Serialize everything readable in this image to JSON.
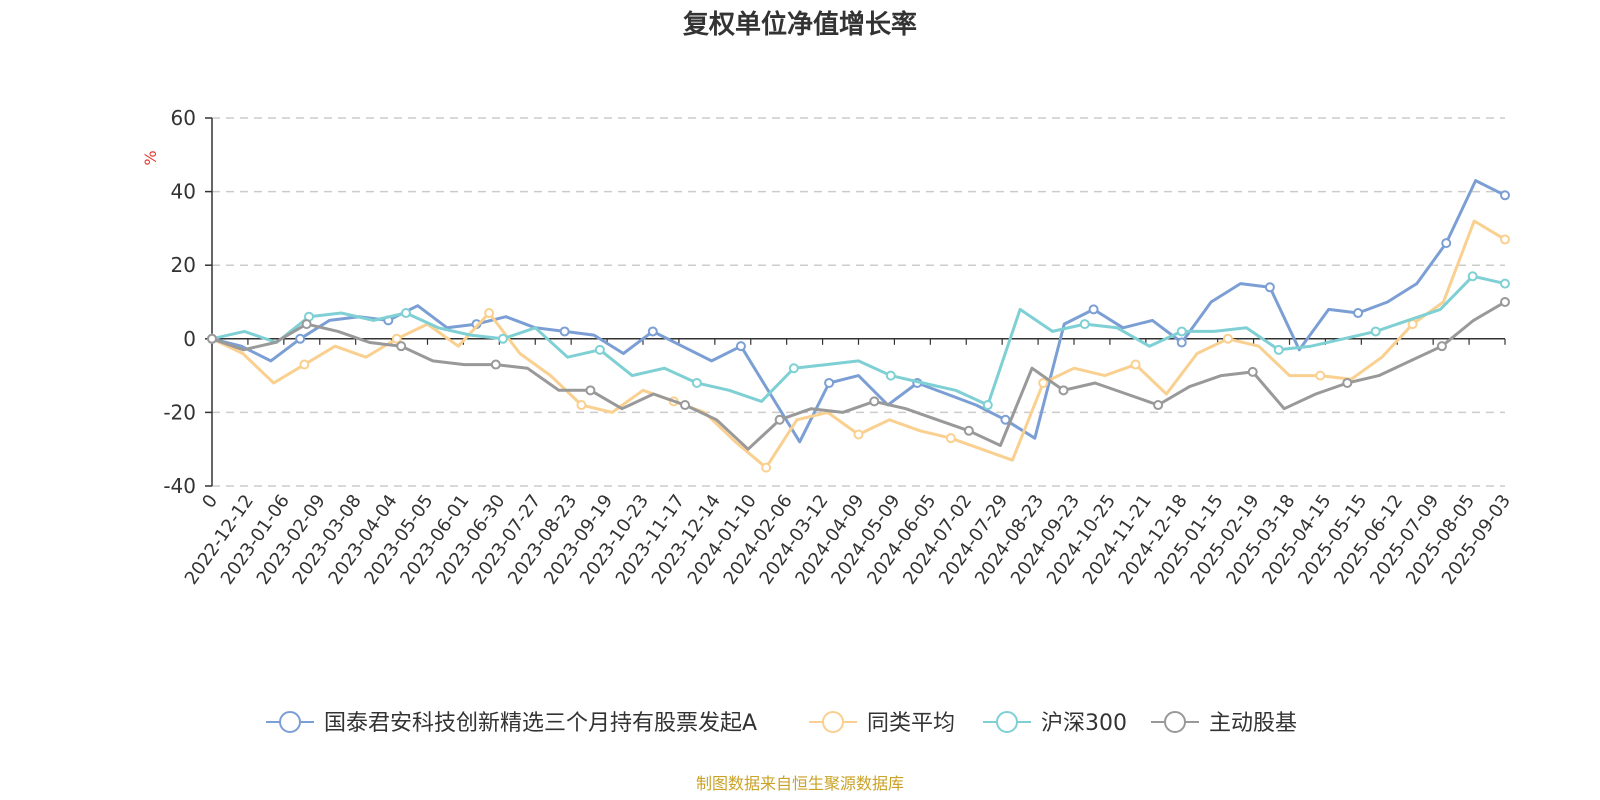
{
  "chart_data": {
    "type": "line",
    "title": "复权单位净值增长率",
    "ylabel": "%",
    "ylim": [
      -40,
      60
    ],
    "yticks": [
      "-40",
      "-20",
      "0",
      "20",
      "40",
      "60"
    ],
    "grid": true,
    "legend_position": "bottom",
    "x_tick_labels": [
      "0",
      "2022-12-12",
      "2023-01-06",
      "2023-02-09",
      "2023-03-08",
      "2023-04-04",
      "2023-05-05",
      "2023-06-01",
      "2023-06-30",
      "2023-07-27",
      "2023-08-23",
      "2023-09-19",
      "2023-10-23",
      "2023-11-17",
      "2023-12-14",
      "2024-01-10",
      "2024-02-06",
      "2024-03-12",
      "2024-04-09",
      "2024-05-09",
      "2024-06-05",
      "2024-07-02",
      "2024-07-29",
      "2024-08-23",
      "2024-09-23",
      "2024-10-25",
      "2024-11-21",
      "2024-12-18",
      "2025-01-15",
      "2025-02-19",
      "2025-03-18",
      "2025-04-15",
      "2025-05-15",
      "2025-06-12",
      "2025-07-09",
      "2025-08-05",
      "2025-09-03"
    ],
    "series": [
      {
        "name": "国泰君安科技创新精选三个月持有股票发起A",
        "color": "#7b9fd4",
        "values": [
          0,
          -2,
          -6,
          0,
          5,
          6,
          5,
          9,
          3,
          4,
          6,
          3,
          2,
          1,
          -4,
          2,
          -2,
          -6,
          -2,
          -15,
          -28,
          -12,
          -10,
          -18,
          -12,
          -15,
          -18,
          -22,
          -27,
          4,
          8,
          3,
          5,
          -1,
          10,
          15,
          14,
          -3,
          8,
          7,
          10,
          15,
          26,
          43,
          39
        ]
      },
      {
        "name": "同类平均",
        "color": "#f9d08f",
        "values": [
          0,
          -4,
          -12,
          -7,
          -2,
          -5,
          0,
          4,
          -2,
          7,
          -4,
          -10,
          -18,
          -20,
          -14,
          -17,
          -20,
          -28,
          -35,
          -22,
          -20,
          -26,
          -22,
          -25,
          -27,
          -30,
          -33,
          -12,
          -8,
          -10,
          -7,
          -15,
          -4,
          0,
          -2,
          -10,
          -10,
          -11,
          -5,
          4,
          10,
          32,
          27
        ]
      },
      {
        "name": "沪深300",
        "color": "#7fd0d4",
        "values": [
          0,
          2,
          -1,
          6,
          7,
          5,
          7,
          3,
          1,
          0,
          3,
          -5,
          -3,
          -10,
          -8,
          -12,
          -14,
          -17,
          -8,
          -7,
          -6,
          -10,
          -12,
          -14,
          -18,
          8,
          2,
          4,
          3,
          -2,
          2,
          2,
          3,
          -3,
          -2,
          0,
          2,
          5,
          8,
          17,
          15
        ]
      },
      {
        "name": "主动股基",
        "color": "#999999",
        "values": [
          0,
          -3,
          -1,
          4,
          2,
          -1,
          -2,
          -6,
          -7,
          -7,
          -8,
          -14,
          -14,
          -19,
          -15,
          -18,
          -22,
          -30,
          -22,
          -19,
          -20,
          -17,
          -19,
          -22,
          -25,
          -29,
          -8,
          -14,
          -12,
          -15,
          -18,
          -13,
          -10,
          -9,
          -19,
          -15,
          -12,
          -10,
          -6,
          -2,
          5,
          10
        ]
      }
    ],
    "source": "制图数据来自恒生聚源数据库"
  }
}
